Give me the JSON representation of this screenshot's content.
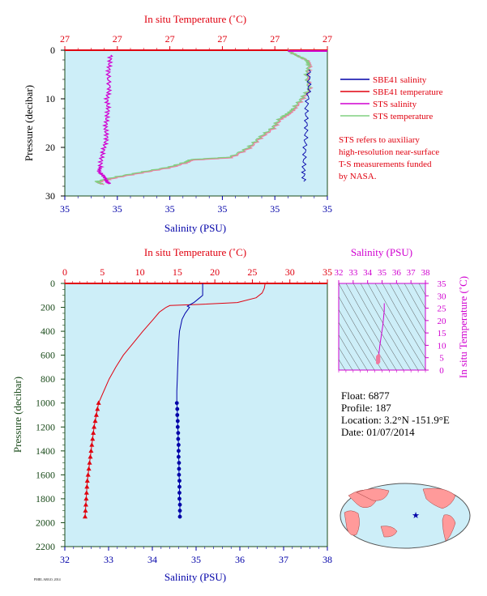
{
  "colors": {
    "bg_plot": "#cdeef8",
    "red": "#e0000f",
    "blue": "#0000a8",
    "magenta": "#d000d0",
    "green_line": "#80d080",
    "pink_line": "#f07aa0",
    "axis_green": "#1a4a1a"
  },
  "chart_data": [
    {
      "type": "line",
      "title": "In situ Temperature (˚C)",
      "top_axis": {
        "label": "In situ Temperature (˚C)",
        "ticks": [
          "27",
          "27",
          "27",
          "27",
          "27",
          "27"
        ]
      },
      "bottom_axis": {
        "label": "Salinity (PSU)",
        "ticks": [
          "35",
          "35",
          "35",
          "35",
          "35",
          "35"
        ]
      },
      "y_axis": {
        "label": "Pressure (decibar)",
        "ticks": [
          "0",
          "10",
          "20",
          "30"
        ],
        "ylim": [
          0,
          30
        ],
        "inverted": true
      },
      "legend": [
        {
          "name": "SBE41 salinity",
          "color": "#0000a8"
        },
        {
          "name": "SBE41 temperature",
          "color": "#e0000f"
        },
        {
          "name": "STS salinity",
          "color": "#d000d0"
        },
        {
          "name": "STS temperature",
          "color": "#80d080"
        }
      ],
      "note": [
        "STS refers to auxiliary",
        "high-resolution near-surface",
        "T-S measurements funded",
        "by NASA."
      ],
      "series": [
        {
          "name": "STS temperature",
          "pressure": [
            0,
            1,
            2,
            3,
            5,
            8,
            10,
            12,
            13,
            14,
            16,
            18,
            20,
            22,
            22.5,
            23,
            24,
            25,
            26,
            27,
            27.5
          ],
          "x_frac": [
            0.85,
            0.88,
            0.92,
            0.93,
            0.92,
            0.93,
            0.9,
            0.87,
            0.85,
            0.82,
            0.79,
            0.74,
            0.7,
            0.63,
            0.48,
            0.46,
            0.4,
            0.3,
            0.2,
            0.12,
            0.14
          ]
        },
        {
          "name": "STS salinity",
          "pressure": [
            1,
            3,
            5,
            8,
            10,
            12,
            14,
            16,
            18,
            20,
            22,
            24,
            25,
            26,
            27,
            27.5
          ],
          "x_frac": [
            0.175,
            0.17,
            0.165,
            0.17,
            0.16,
            0.165,
            0.16,
            0.155,
            0.16,
            0.15,
            0.14,
            0.135,
            0.13,
            0.15,
            0.16,
            0.17
          ]
        },
        {
          "name": "SBE41 salinity",
          "pressure": [
            4,
            8,
            12,
            16,
            20,
            24,
            27
          ],
          "x_frac": [
            0.93,
            0.93,
            0.92,
            0.92,
            0.915,
            0.91,
            0.91
          ]
        }
      ]
    },
    {
      "type": "line",
      "top_axis": {
        "label": "In situ Temperature (˚C)",
        "ticks": [
          "0",
          "5",
          "10",
          "15",
          "20",
          "25",
          "30",
          "35"
        ],
        "xlim": [
          0,
          35
        ]
      },
      "bottom_axis": {
        "label": "Salinity (PSU)",
        "ticks": [
          "32",
          "33",
          "34",
          "35",
          "36",
          "37",
          "38"
        ],
        "xlim": [
          32,
          38
        ]
      },
      "y_axis": {
        "label": "Pressure (decibar)",
        "ticks": [
          "0",
          "200",
          "400",
          "600",
          "800",
          "1000",
          "1200",
          "1400",
          "1600",
          "1800",
          "2000",
          "2200"
        ],
        "ylim": [
          0,
          2200
        ],
        "inverted": true
      },
      "series": [
        {
          "name": "Temperature",
          "pressure": [
            0,
            40,
            80,
            120,
            160,
            175,
            185,
            200,
            240,
            300,
            400,
            500,
            600,
            700,
            800,
            900,
            1000
          ],
          "values": [
            26.7,
            26.6,
            26.3,
            25.5,
            23,
            18,
            14,
            13.5,
            12.6,
            11.8,
            10.4,
            9.1,
            7.8,
            6.8,
            5.9,
            5.2,
            4.5
          ],
          "markers_pressure": [
            1000,
            1050,
            1100,
            1150,
            1200,
            1250,
            1300,
            1350,
            1400,
            1450,
            1500,
            1550,
            1600,
            1650,
            1700,
            1750,
            1800,
            1850,
            1900,
            1950
          ],
          "markers_values": [
            4.5,
            4.35,
            4.2,
            4.05,
            3.9,
            3.8,
            3.7,
            3.6,
            3.5,
            3.4,
            3.3,
            3.2,
            3.1,
            3.0,
            2.95,
            2.9,
            2.85,
            2.8,
            2.75,
            2.7
          ]
        },
        {
          "name": "Salinity",
          "pressure": [
            0,
            100,
            130,
            160,
            190,
            200,
            250,
            300,
            400,
            500,
            600,
            700,
            800,
            900,
            1000
          ],
          "values": [
            35.15,
            35.15,
            35.05,
            34.95,
            34.8,
            34.85,
            34.75,
            34.68,
            34.62,
            34.6,
            34.59,
            34.58,
            34.57,
            34.56,
            34.56
          ],
          "markers_pressure": [
            1000,
            1050,
            1100,
            1150,
            1200,
            1250,
            1300,
            1350,
            1400,
            1450,
            1500,
            1550,
            1600,
            1650,
            1700,
            1750,
            1800,
            1850,
            1900,
            1950
          ],
          "markers_values": [
            34.56,
            34.57,
            34.57,
            34.58,
            34.58,
            34.59,
            34.59,
            34.6,
            34.6,
            34.6,
            34.61,
            34.61,
            34.61,
            34.62,
            34.62,
            34.62,
            34.62,
            34.63,
            34.63,
            34.63
          ]
        }
      ]
    },
    {
      "type": "scatter",
      "top_axis": {
        "label": "Salinity (PSU)",
        "ticks": [
          "32",
          "33",
          "34",
          "35",
          "36",
          "37",
          "38"
        ],
        "xlim": [
          32,
          38
        ]
      },
      "right_axis": {
        "label": "In situ Temperature (˚C)",
        "ticks": [
          "0",
          "5",
          "10",
          "15",
          "20",
          "25",
          "30",
          "35"
        ],
        "ylim": [
          0,
          35
        ]
      },
      "series": [
        {
          "name": "T-S",
          "x": [
            34.7,
            34.75,
            34.85,
            34.95,
            35.05,
            35.15,
            35.15
          ],
          "y": [
            4,
            5,
            10,
            14,
            18,
            24,
            27
          ]
        }
      ]
    }
  ],
  "float_info": {
    "float": "Float:  6877",
    "profile": "Profile:  187",
    "location": "Location:  3.2°N  -151.9°E",
    "date": "Date:  01/07/2014"
  },
  "footer_note": "PMEL ARGO, 2014"
}
